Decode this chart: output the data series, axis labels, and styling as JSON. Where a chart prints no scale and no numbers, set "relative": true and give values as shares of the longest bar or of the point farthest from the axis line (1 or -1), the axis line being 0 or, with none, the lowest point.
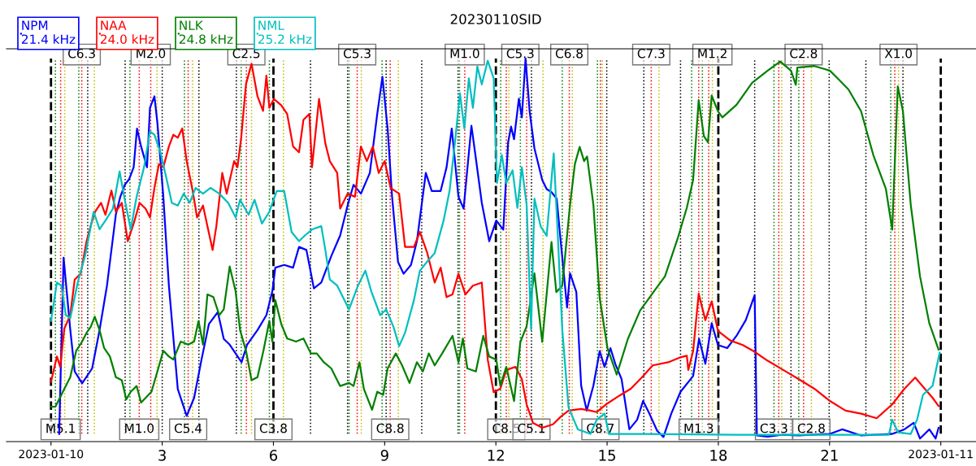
{
  "chart_data": {
    "type": "line",
    "title": "20230110SID",
    "relative": true,
    "legend": "top left",
    "grid": false,
    "line_style": "solid",
    "marker": "none",
    "xlim": [
      -1.2,
      24.95
    ],
    "xticks": [
      {
        "value": 0,
        "label": "2023-01-10"
      },
      3,
      6,
      9,
      12,
      15,
      18,
      21,
      {
        "value": 24,
        "label": "2023-01-11"
      }
    ],
    "series": [
      {
        "name": "NPM\n21.4 kHz",
        "color": "#0000ff",
        "x": [
          0.22,
          0.34,
          0.52,
          0.64,
          0.84,
          1.11,
          1.31,
          1.51,
          1.75,
          1.87,
          1.99,
          2.11,
          2.23,
          2.32,
          2.43,
          2.59,
          2.67,
          2.79,
          2.87,
          3.03,
          3.18,
          3.42,
          3.66,
          3.86,
          4.06,
          4.26,
          4.5,
          4.66,
          4.82,
          5.14,
          5.29,
          5.57,
          5.81,
          5.97,
          6.05,
          6.29,
          6.53,
          6.69,
          6.89,
          7.09,
          7.29,
          7.56,
          7.8,
          8.0,
          8.16,
          8.36,
          8.6,
          8.8,
          8.94,
          9.08,
          9.2,
          9.36,
          9.51,
          9.71,
          9.87,
          10.11,
          10.27,
          10.51,
          10.67,
          10.81,
          10.99,
          11.13,
          11.34,
          11.46,
          11.62,
          11.82,
          12.01,
          12.2,
          12.33,
          12.41,
          12.49,
          12.62,
          12.7,
          12.8,
          12.91,
          13.04,
          13.25,
          13.37,
          13.5,
          13.64,
          13.75,
          13.92,
          14.0,
          14.17,
          14.3,
          14.45,
          14.63,
          14.8,
          14.93,
          15.09,
          15.22,
          15.39,
          15.6,
          15.81,
          15.97,
          16.14,
          16.35,
          16.52,
          16.73,
          16.98,
          17.32,
          17.48,
          17.65,
          17.82,
          17.99,
          18.24,
          18.49,
          18.74,
          18.98,
          19.04,
          19.33,
          19.75,
          20.17,
          21.01,
          21.34,
          21.85,
          22.69,
          23.02,
          23.27,
          23.44,
          23.69,
          23.86,
          23.94
        ],
        "values": [
          0.02,
          0.48,
          0.292,
          0.183,
          0.152,
          0.191,
          0.291,
          0.407,
          0.593,
          0.639,
          0.67,
          0.685,
          0.716,
          0.817,
          0.77,
          0.716,
          0.871,
          0.901,
          0.832,
          0.639,
          0.407,
          0.137,
          0.067,
          0.114,
          0.214,
          0.307,
          0.338,
          0.268,
          0.253,
          0.207,
          0.253,
          0.291,
          0.33,
          0.392,
          0.454,
          0.461,
          0.454,
          0.508,
          0.5,
          0.4,
          0.415,
          0.484,
          0.538,
          0.616,
          0.67,
          0.647,
          0.701,
          0.855,
          0.952,
          0.817,
          0.639,
          0.469,
          0.438,
          0.461,
          0.523,
          0.701,
          0.654,
          0.654,
          0.716,
          0.817,
          0.639,
          0.608,
          0.824,
          0.739,
          0.623,
          0.523,
          0.577,
          0.553,
          0.781,
          0.822,
          0.789,
          0.895,
          0.846,
          1,
          0.862,
          0.765,
          0.683,
          0.659,
          0.651,
          0.634,
          0.521,
          0.35,
          0.439,
          0.39,
          0.146,
          0.081,
          0.146,
          0.236,
          0.195,
          0.244,
          0.203,
          0.163,
          0.032,
          0.057,
          0.106,
          0.073,
          0.028,
          0.012,
          0.073,
          0.13,
          0.171,
          0.268,
          0.203,
          0.309,
          0.252,
          0.244,
          0.276,
          0.317,
          0.382,
          0.016,
          0.013,
          0.018,
          0.016,
          0.02,
          0.032,
          0.016,
          0.02,
          0.032,
          0.049,
          0.008,
          0.032,
          0.008,
          0.036
        ]
      },
      {
        "name": "NAA\n24.0 kHz",
        "color": "#ff0000",
        "x": [
          0,
          0.16,
          0.25,
          0.36,
          0.52,
          0.64,
          0.8,
          0.96,
          1.07,
          1.19,
          1.35,
          1.47,
          1.63,
          1.75,
          1.91,
          2.07,
          2.23,
          2.39,
          2.55,
          2.67,
          2.79,
          2.91,
          3.03,
          3.18,
          3.3,
          3.42,
          3.54,
          3.66,
          3.82,
          3.94,
          4.1,
          4.22,
          4.36,
          4.46,
          4.62,
          4.74,
          4.94,
          5.03,
          5.13,
          5.26,
          5.41,
          5.57,
          5.72,
          5.81,
          5.89,
          6.01,
          6.21,
          6.37,
          6.53,
          6.69,
          6.81,
          6.97,
          7.04,
          7.23,
          7.4,
          7.52,
          7.72,
          7.8,
          8.0,
          8.2,
          8.36,
          8.52,
          8.68,
          8.84,
          9.0,
          9.16,
          9.39,
          9.55,
          9.79,
          9.95,
          10.15,
          10.35,
          10.51,
          10.67,
          10.83,
          10.99,
          11.18,
          11.38,
          11.62,
          11.78,
          11.94,
          12.12,
          12.28,
          12.53,
          12.7,
          12.83,
          13.0,
          13.25,
          13.54,
          13.75,
          13.96,
          14.3,
          14.55,
          14.72,
          14.97,
          15.3,
          15.64,
          15.97,
          16.23,
          16.65,
          16.98,
          17.15,
          17.19,
          17.32,
          17.47,
          17.65,
          17.82,
          17.99,
          18.32,
          18.66,
          18.95,
          19.33,
          19.75,
          20.17,
          20.59,
          21.01,
          21.43,
          21.85,
          22.27,
          22.69,
          23.02,
          23.31,
          23.53,
          23.78,
          23.94
        ],
        "values": [
          0.156,
          0.222,
          0.195,
          0.295,
          0.33,
          0.423,
          0.438,
          0.523,
          0.563,
          0.6,
          0.623,
          0.592,
          0.655,
          0.6,
          0.623,
          0.523,
          0.569,
          0.623,
          0.608,
          0.585,
          0.662,
          0.724,
          0.716,
          0.77,
          0.801,
          0.793,
          0.817,
          0.732,
          0.655,
          0.585,
          0.616,
          0.562,
          0.5,
          0.562,
          0.701,
          0.647,
          0.732,
          0.716,
          0.793,
          0.933,
          0.986,
          0.901,
          0.863,
          0.955,
          0.871,
          0.894,
          0.878,
          0.855,
          0.77,
          0.755,
          0.84,
          0.855,
          0.716,
          0.894,
          0.778,
          0.732,
          0.701,
          0.608,
          0.647,
          0.639,
          0.77,
          0.732,
          0.77,
          0.701,
          0.732,
          0.662,
          0.647,
          0.508,
          0.508,
          0.547,
          0.492,
          0.415,
          0.454,
          0.377,
          0.384,
          0.438,
          0.384,
          0.407,
          0.415,
          0.214,
          0.129,
          0.138,
          0.187,
          0.195,
          0.163,
          0.097,
          0.049,
          0.036,
          0.045,
          0.065,
          0.081,
          0.085,
          0.081,
          0.077,
          0.097,
          0.118,
          0.138,
          0.171,
          0.199,
          0.207,
          0.22,
          0.224,
          0.187,
          0.236,
          0.386,
          0.317,
          0.366,
          0.289,
          0.264,
          0.252,
          0.236,
          0.211,
          0.187,
          0.163,
          0.138,
          0.106,
          0.081,
          0.073,
          0.061,
          0.097,
          0.138,
          0.167,
          0.142,
          0.114,
          0.093
        ]
      },
      {
        "name": "NLK\n24.8 kHz",
        "color": "#008000",
        "x": [
          0,
          0.12,
          0.32,
          0.52,
          0.68,
          0.84,
          0.96,
          1.07,
          1.18,
          1.31,
          1.43,
          1.59,
          1.75,
          1.91,
          2.03,
          2.15,
          2.31,
          2.43,
          2.71,
          2.87,
          3.03,
          3.18,
          3.3,
          3.5,
          3.7,
          3.86,
          3.98,
          4.1,
          4.22,
          4.38,
          4.54,
          4.66,
          4.82,
          4.98,
          5.1,
          5.26,
          5.41,
          5.57,
          5.73,
          5.89,
          5.97,
          6.05,
          6.21,
          6.37,
          6.61,
          6.81,
          7.01,
          7.17,
          7.36,
          7.56,
          7.8,
          8.04,
          8.16,
          8.32,
          8.44,
          8.66,
          8.8,
          8.96,
          9.08,
          9.3,
          9.47,
          9.67,
          9.87,
          10.03,
          10.19,
          10.35,
          10.55,
          10.83,
          10.99,
          11.11,
          11.23,
          11.46,
          11.66,
          11.82,
          12.01,
          12.12,
          12.28,
          12.49,
          12.66,
          12.83,
          13.04,
          13.25,
          13.5,
          13.63,
          13.79,
          14.0,
          14.13,
          14.26,
          14.38,
          14.46,
          14.63,
          14.8,
          15.01,
          15.26,
          15.56,
          15.89,
          16.31,
          16.56,
          16.9,
          17.15,
          17.32,
          17.47,
          17.61,
          17.72,
          17.82,
          17.99,
          18.11,
          18.49,
          18.91,
          19.33,
          19.67,
          19.96,
          20.09,
          20.13,
          20.59,
          21.01,
          21.26,
          21.51,
          21.85,
          22.18,
          22.52,
          22.69,
          22.84,
          22.98,
          23.19,
          23.44,
          23.69,
          23.94
        ],
        "values": [
          0.091,
          0.091,
          0.13,
          0.168,
          0.237,
          0.261,
          0.284,
          0.299,
          0.326,
          0.291,
          0.245,
          0.222,
          0.168,
          0.16,
          0.11,
          0.13,
          0.145,
          0.102,
          0.13,
          0.183,
          0.237,
          0.222,
          0.214,
          0.261,
          0.253,
          0.261,
          0.315,
          0.253,
          0.384,
          0.377,
          0.33,
          0.345,
          0.457,
          0.392,
          0.291,
          0.237,
          0.16,
          0.168,
          0.237,
          0.315,
          0.261,
          0.369,
          0.307,
          0.269,
          0.261,
          0.269,
          0.23,
          0.23,
          0.207,
          0.191,
          0.145,
          0.153,
          0.145,
          0.207,
          0.137,
          0.083,
          0.13,
          0.122,
          0.191,
          0.23,
          0.199,
          0.153,
          0.207,
          0.183,
          0.23,
          0.199,
          0.23,
          0.276,
          0.207,
          0.269,
          0.191,
          0.183,
          0.276,
          0.222,
          0.214,
          0.146,
          0.195,
          0.106,
          0.26,
          0.301,
          0.439,
          0.26,
          0.521,
          0.39,
          0.407,
          0.618,
          0.724,
          0.769,
          0.732,
          0.744,
          0.618,
          0.374,
          0.244,
          0.175,
          0.268,
          0.342,
          0.398,
          0.431,
          0.529,
          0.61,
          0.683,
          0.891,
          0.797,
          0.781,
          0.903,
          0.862,
          0.846,
          0.879,
          0.936,
          0.968,
          0.992,
          0.968,
          0.931,
          0.976,
          0.98,
          0.968,
          0.944,
          0.919,
          0.862,
          0.748,
          0.659,
          0.553,
          0.927,
          0.862,
          0.618,
          0.431,
          0.309,
          0.24
        ]
      },
      {
        "name": "NML\n25.2 kHz",
        "color": "#00bfbf",
        "x": [
          0,
          0.16,
          0.28,
          0.4,
          0.52,
          0.72,
          0.92,
          1.15,
          1.31,
          1.47,
          1.67,
          1.85,
          1.99,
          2.15,
          2.31,
          2.51,
          2.67,
          2.79,
          2.95,
          3.1,
          3.26,
          3.42,
          3.58,
          3.74,
          3.9,
          4.1,
          4.3,
          4.54,
          4.78,
          4.98,
          5.1,
          5.33,
          5.49,
          5.69,
          5.89,
          6.09,
          6.29,
          6.49,
          6.69,
          6.85,
          7.05,
          7.29,
          7.4,
          7.52,
          7.72,
          8.04,
          8.28,
          8.48,
          8.64,
          8.88,
          9.04,
          9.24,
          9.39,
          9.55,
          9.79,
          9.95,
          10.15,
          10.35,
          10.59,
          10.75,
          10.91,
          11.03,
          11.15,
          11.27,
          11.38,
          11.5,
          11.62,
          11.78,
          11.94,
          12.03,
          12.16,
          12.28,
          12.45,
          12.58,
          12.7,
          12.83,
          12.95,
          13.04,
          13.21,
          13.37,
          13.56,
          13.67,
          13.79,
          13.96,
          14.21,
          14.55,
          14.72,
          14.93,
          15.05,
          15.97,
          18.49,
          20.17,
          22.6,
          22.69,
          22.85,
          23.19,
          23.36,
          23.52,
          23.78,
          23.97
        ],
        "values": [
          0.315,
          0.415,
          0.407,
          0.33,
          0.322,
          0.415,
          0.485,
          0.6,
          0.554,
          0.577,
          0.608,
          0.705,
          0.631,
          0.554,
          0.639,
          0.716,
          0.809,
          0.801,
          0.755,
          0.693,
          0.623,
          0.616,
          0.647,
          0.623,
          0.662,
          0.647,
          0.662,
          0.647,
          0.623,
          0.585,
          0.631,
          0.592,
          0.631,
          0.569,
          0.6,
          0.654,
          0.654,
          0.547,
          0.523,
          0.538,
          0.554,
          0.562,
          0.5,
          0.423,
          0.407,
          0.345,
          0.407,
          0.446,
          0.392,
          0.33,
          0.345,
          0.299,
          0.249,
          0.284,
          0.369,
          0.446,
          0.47,
          0.492,
          0.577,
          0.654,
          0.793,
          0.909,
          0.817,
          0.948,
          0.871,
          0.979,
          0.932,
          0.994,
          0.948,
          0.675,
          0.748,
          0.675,
          0.708,
          0.61,
          0.716,
          0.618,
          0.293,
          0.634,
          0.561,
          0.537,
          0.752,
          0.537,
          0.293,
          0.089,
          0.032,
          0.02,
          0.057,
          0.073,
          0.02,
          0.02,
          0.018,
          0.018,
          0.018,
          0.057,
          0.024,
          0.02,
          0.057,
          0.122,
          0.146,
          0.232
        ]
      }
    ],
    "ref_lines": [
      {
        "axis": "x",
        "value": 0,
        "color": "#000000",
        "line_style": "dashed"
      },
      {
        "axis": "x",
        "value": 6,
        "color": "#000000",
        "line_style": "dashed"
      },
      {
        "axis": "x",
        "value": 12,
        "color": "#000000",
        "line_style": "dashed"
      },
      {
        "axis": "x",
        "value": 18,
        "color": "#000000",
        "line_style": "dashed"
      },
      {
        "axis": "x",
        "value": 24,
        "color": "#000000",
        "line_style": "dashed"
      },
      {
        "axis": "x",
        "value": 0.12,
        "color": "#008000",
        "line_style": "dotted"
      },
      {
        "axis": "x",
        "value": 0.26,
        "color": "#ff0000",
        "line_style": "dotted"
      },
      {
        "axis": "x",
        "value": 0.37,
        "color": "#bfbf00",
        "line_style": "dotted"
      },
      {
        "axis": "x",
        "value": 0.75,
        "color": "#008000",
        "line_style": "dotted"
      },
      {
        "axis": "x",
        "value": 0.83,
        "color": "#ff0000",
        "line_style": "dotted"
      },
      {
        "axis": "x",
        "value": 0.99,
        "color": "#000000",
        "line_style": "dotted"
      },
      {
        "axis": "x",
        "value": 1.17,
        "color": "#bfbf00",
        "line_style": "dotted"
      },
      {
        "axis": "x",
        "value": 2.0,
        "color": "#000000",
        "line_style": "dotted"
      },
      {
        "axis": "x",
        "value": 2.13,
        "color": "#008000",
        "line_style": "dotted"
      },
      {
        "axis": "x",
        "value": 2.38,
        "color": "#ff0000",
        "line_style": "dotted"
      },
      {
        "axis": "x",
        "value": 2.69,
        "color": "#ff0000",
        "line_style": "dotted"
      },
      {
        "axis": "x",
        "value": 2.86,
        "color": "#bfbf00",
        "line_style": "dotted"
      },
      {
        "axis": "x",
        "value": 3.0,
        "color": "#000000",
        "line_style": "dotted"
      },
      {
        "axis": "x",
        "value": 3.6,
        "color": "#008000",
        "line_style": "dotted"
      },
      {
        "axis": "x",
        "value": 3.7,
        "color": "#ff0000",
        "line_style": "dotted"
      },
      {
        "axis": "x",
        "value": 3.82,
        "color": "#bfbf00",
        "line_style": "dotted"
      },
      {
        "axis": "x",
        "value": 3.99,
        "color": "#000000",
        "line_style": "dotted"
      },
      {
        "axis": "x",
        "value": 5.0,
        "color": "#000000",
        "line_style": "dotted"
      },
      {
        "axis": "x",
        "value": 5.13,
        "color": "#008000",
        "line_style": "dotted"
      },
      {
        "axis": "x",
        "value": 5.27,
        "color": "#ff0000",
        "line_style": "dotted"
      },
      {
        "axis": "x",
        "value": 5.41,
        "color": "#bfbf00",
        "line_style": "dotted"
      },
      {
        "axis": "x",
        "value": 5.89,
        "color": "#008000",
        "line_style": "dotted"
      },
      {
        "axis": "x",
        "value": 6.27,
        "color": "#bfbf00",
        "line_style": "dotted"
      },
      {
        "axis": "x",
        "value": 7.0,
        "color": "#000000",
        "line_style": "dotted"
      },
      {
        "axis": "x",
        "value": 8.0,
        "color": "#000000",
        "line_style": "dotted"
      },
      {
        "axis": "x",
        "value": 8.04,
        "color": "#008000",
        "line_style": "dotted"
      },
      {
        "axis": "x",
        "value": 8.26,
        "color": "#ff0000",
        "line_style": "dotted"
      },
      {
        "axis": "x",
        "value": 8.37,
        "color": "#bfbf00",
        "line_style": "dotted"
      },
      {
        "axis": "x",
        "value": 8.93,
        "color": "#008000",
        "line_style": "dotted"
      },
      {
        "axis": "x",
        "value": 9.04,
        "color": "#000000",
        "line_style": "dotted"
      },
      {
        "axis": "x",
        "value": 9.15,
        "color": "#ff0000",
        "line_style": "dotted"
      },
      {
        "axis": "x",
        "value": 9.37,
        "color": "#bfbf00",
        "line_style": "dotted"
      },
      {
        "axis": "x",
        "value": 10.0,
        "color": "#000000",
        "line_style": "dotted"
      },
      {
        "axis": "x",
        "value": 10.98,
        "color": "#000000",
        "line_style": "dotted"
      },
      {
        "axis": "x",
        "value": 11.02,
        "color": "#008000",
        "line_style": "dotted"
      },
      {
        "axis": "x",
        "value": 11.16,
        "color": "#ff0000",
        "line_style": "dotted"
      },
      {
        "axis": "x",
        "value": 12.13,
        "color": "#008000",
        "line_style": "dotted"
      },
      {
        "axis": "x",
        "value": 12.28,
        "color": "#ff0000",
        "line_style": "dotted"
      },
      {
        "axis": "x",
        "value": 12.35,
        "color": "#bfbf00",
        "line_style": "dotted"
      },
      {
        "axis": "x",
        "value": 12.66,
        "color": "#008000",
        "line_style": "dotted"
      },
      {
        "axis": "x",
        "value": 12.83,
        "color": "#ff0000",
        "line_style": "dotted"
      },
      {
        "axis": "x",
        "value": 12.96,
        "color": "#000000",
        "line_style": "dotted"
      },
      {
        "axis": "x",
        "value": 13.27,
        "color": "#bfbf00",
        "line_style": "dotted"
      },
      {
        "axis": "x",
        "value": 13.79,
        "color": "#008000",
        "line_style": "dotted"
      },
      {
        "axis": "x",
        "value": 13.98,
        "color": "#ff0000",
        "line_style": "dotted"
      },
      {
        "axis": "x",
        "value": 14.06,
        "color": "#bfbf00",
        "line_style": "dotted"
      },
      {
        "axis": "x",
        "value": 14.74,
        "color": "#008000",
        "line_style": "dotted"
      },
      {
        "axis": "x",
        "value": 14.82,
        "color": "#ff0000",
        "line_style": "dotted"
      },
      {
        "axis": "x",
        "value": 14.87,
        "color": "#bfbf00",
        "line_style": "dotted"
      },
      {
        "axis": "x",
        "value": 14.99,
        "color": "#000000",
        "line_style": "dotted"
      },
      {
        "axis": "x",
        "value": 15.99,
        "color": "#000000",
        "line_style": "dotted"
      },
      {
        "axis": "x",
        "value": 16.19,
        "color": "#ff0000",
        "line_style": "dotted"
      },
      {
        "axis": "x",
        "value": 16.4,
        "color": "#bfbf00",
        "line_style": "dotted"
      },
      {
        "axis": "x",
        "value": 16.98,
        "color": "#000000",
        "line_style": "dotted"
      },
      {
        "axis": "x",
        "value": 17.28,
        "color": "#008000",
        "line_style": "dotted"
      },
      {
        "axis": "x",
        "value": 17.47,
        "color": "#ff0000",
        "line_style": "dotted"
      },
      {
        "axis": "x",
        "value": 17.57,
        "color": "#008000",
        "line_style": "dotted"
      },
      {
        "axis": "x",
        "value": 17.74,
        "color": "#ff0000",
        "line_style": "dotted"
      },
      {
        "axis": "x",
        "value": 17.84,
        "color": "#bfbf00",
        "line_style": "dotted"
      },
      {
        "axis": "x",
        "value": 18.98,
        "color": "#000000",
        "line_style": "dotted"
      },
      {
        "axis": "x",
        "value": 19.5,
        "color": "#008000",
        "line_style": "dotted"
      },
      {
        "axis": "x",
        "value": 19.63,
        "color": "#ff0000",
        "line_style": "dotted"
      },
      {
        "axis": "x",
        "value": 19.71,
        "color": "#bfbf00",
        "line_style": "dotted"
      },
      {
        "axis": "x",
        "value": 19.96,
        "color": "#000000",
        "line_style": "dotted"
      },
      {
        "axis": "x",
        "value": 20.17,
        "color": "#008000",
        "line_style": "dotted"
      },
      {
        "axis": "x",
        "value": 20.3,
        "color": "#ff0000",
        "line_style": "dotted"
      },
      {
        "axis": "x",
        "value": 20.51,
        "color": "#bfbf00",
        "line_style": "dotted"
      },
      {
        "axis": "x",
        "value": 20.99,
        "color": "#000000",
        "line_style": "dotted"
      },
      {
        "axis": "x",
        "value": 21.98,
        "color": "#000000",
        "line_style": "dotted"
      },
      {
        "axis": "x",
        "value": 22.65,
        "color": "#008000",
        "line_style": "dotted"
      },
      {
        "axis": "x",
        "value": 22.76,
        "color": "#ff0000",
        "line_style": "dotted"
      },
      {
        "axis": "x",
        "value": 22.86,
        "color": "#bfbf00",
        "line_style": "dotted"
      },
      {
        "axis": "x",
        "value": 22.98,
        "color": "#000000",
        "line_style": "dotted"
      }
    ],
    "annotations": [
      {
        "text": "C6.3",
        "x": 0.83,
        "y": 1.01
      },
      {
        "text": "M2.0",
        "x": 2.69,
        "y": 1.01
      },
      {
        "text": "C2.5",
        "x": 5.27,
        "y": 1.01
      },
      {
        "text": "C5.3",
        "x": 8.26,
        "y": 1.01
      },
      {
        "text": "M1.0",
        "x": 11.16,
        "y": 1.01
      },
      {
        "text": "C5.3",
        "x": 12.66,
        "y": 1.01
      },
      {
        "text": "C6.8",
        "x": 13.98,
        "y": 1.01
      },
      {
        "text": "C7.3",
        "x": 16.19,
        "y": 1.01
      },
      {
        "text": "M1.2",
        "x": 17.84,
        "y": 1.01
      },
      {
        "text": "C2.8",
        "x": 20.3,
        "y": 1.01
      },
      {
        "text": "X1.0",
        "x": 22.86,
        "y": 1.01
      },
      {
        "text": "M5.1",
        "x": 0.26,
        "y": 0.032
      },
      {
        "text": "M1.0",
        "x": 2.38,
        "y": 0.032
      },
      {
        "text": "C5.4",
        "x": 3.7,
        "y": 0.032
      },
      {
        "text": "C3.8",
        "x": 6,
        "y": 0.032
      },
      {
        "text": "C8.8",
        "x": 9.15,
        "y": 0.032
      },
      {
        "text": "C8.5",
        "x": 12.28,
        "y": 0.032
      },
      {
        "text": "C5.1",
        "x": 12.96,
        "y": 0.032
      },
      {
        "text": "C8.7",
        "x": 14.82,
        "y": 0.032
      },
      {
        "text": "M1.3",
        "x": 17.47,
        "y": 0.032
      },
      {
        "text": "C3.3",
        "x": 19.5,
        "y": 0.032
      },
      {
        "text": "C2.8",
        "x": 20.51,
        "y": 0.032
      }
    ]
  }
}
